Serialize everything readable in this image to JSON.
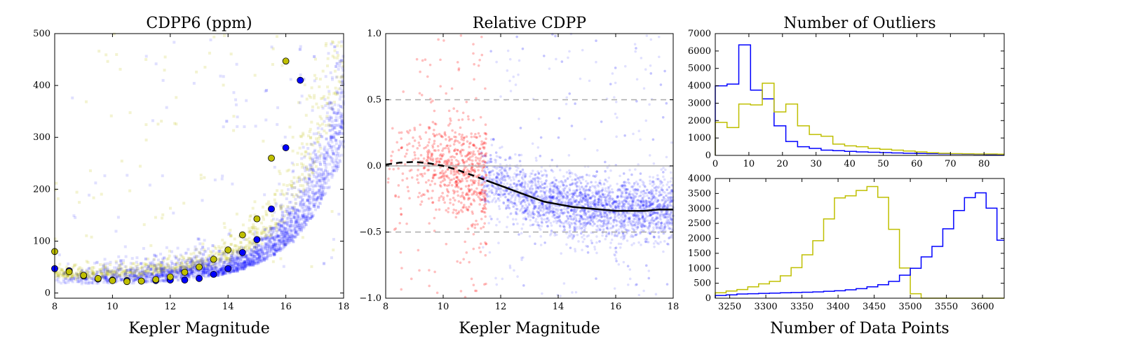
{
  "chart_data": [
    {
      "type": "scatter",
      "title": "CDPP6 (ppm)",
      "xlabel": "Kepler Magnitude",
      "ylabel": "",
      "xlim": [
        8,
        18
      ],
      "ylim": [
        -10,
        500
      ],
      "xticks": [
        "8",
        "10",
        "12",
        "14",
        "16",
        "18"
      ],
      "yticks": [
        "0",
        "100",
        "200",
        "300",
        "400",
        "500"
      ],
      "grid": false,
      "colors": {
        "blue": "#0000ff",
        "yellow": "#bfbf00"
      },
      "series": [
        {
          "points": [
            [
              8,
              47
            ],
            [
              8.5,
              43
            ],
            [
              9,
              33
            ],
            [
              9.5,
              27
            ],
            [
              10,
              25
            ],
            [
              10.5,
              24
            ],
            [
              11,
              23
            ],
            [
              11.5,
              24
            ],
            [
              12,
              25
            ],
            [
              12.5,
              25
            ],
            [
              13,
              28
            ],
            [
              13.5,
              36
            ],
            [
              14,
              47
            ],
            [
              14.5,
              78
            ],
            [
              15,
              103
            ],
            [
              15.5,
              162
            ],
            [
              16,
              280
            ],
            [
              16.5,
              410
            ]
          ]
        },
        {
          "points": [
            [
              8,
              80
            ],
            [
              8.5,
              41
            ],
            [
              9,
              34
            ],
            [
              9.5,
              28
            ],
            [
              10,
              24
            ],
            [
              10.5,
              22
            ],
            [
              11,
              23
            ],
            [
              11.5,
              26
            ],
            [
              12,
              31
            ],
            [
              12.5,
              40
            ],
            [
              13,
              50
            ],
            [
              13.5,
              65
            ],
            [
              14,
              83
            ],
            [
              14.5,
              112
            ],
            [
              15,
              143
            ],
            [
              15.5,
              260
            ],
            [
              16,
              447
            ]
          ]
        }
      ]
    },
    {
      "type": "scatter",
      "title": "Relative CDPP",
      "xlabel": "Kepler Magnitude",
      "ylabel": "",
      "xlim": [
        8,
        18
      ],
      "ylim": [
        -1.0,
        1.0
      ],
      "xticks": [
        "8",
        "10",
        "12",
        "14",
        "16",
        "18"
      ],
      "yticks": [
        "−1.0",
        "−0.5",
        "0.0",
        "0.5",
        "1.0"
      ],
      "grid": false,
      "reference_lines": {
        "solid": [
          0.0
        ],
        "dashed": [
          0.5,
          -0.5
        ]
      },
      "colors": {
        "red": "#ff0000",
        "blue": "#0000ff",
        "trend": "#000000"
      },
      "series": [
        {
          "x": [
            8,
            8.5,
            9,
            9.5,
            10,
            10.5,
            11,
            11.5,
            12,
            12.5,
            13,
            13.5,
            14,
            14.5,
            15,
            15.5,
            16,
            16.5,
            17,
            17.5,
            18
          ],
          "y": [
            0.01,
            0.025,
            0.03,
            0.02,
            0.0,
            -0.03,
            -0.07,
            -0.11,
            -0.15,
            -0.19,
            -0.23,
            -0.27,
            -0.29,
            -0.31,
            -0.32,
            -0.33,
            -0.34,
            -0.34,
            -0.34,
            -0.33,
            -0.33
          ]
        }
      ]
    },
    {
      "type": "histogram",
      "title": "Number of Outliers",
      "xlabel": "",
      "ylabel": "",
      "xlim": [
        0,
        86
      ],
      "ylim": [
        0,
        7000
      ],
      "xticks": [
        "0",
        "10",
        "20",
        "30",
        "40",
        "50",
        "60",
        "70",
        "80"
      ],
      "yticks": [
        "0",
        "1000",
        "2000",
        "3000",
        "4000",
        "5000",
        "6000",
        "7000"
      ],
      "grid": false,
      "bin_edges": [
        0,
        3.5,
        7,
        10.5,
        14,
        17.5,
        21,
        24.5,
        28,
        31.5,
        35,
        38.5,
        42,
        45.5,
        49,
        52.5,
        56,
        59.5,
        63,
        66.5,
        70,
        73.5,
        77,
        80.5,
        84,
        86
      ],
      "series": [
        {
          "color": "#0000ff",
          "values": [
            4000,
            4100,
            6350,
            3750,
            3250,
            1700,
            800,
            500,
            400,
            300,
            270,
            230,
            200,
            180,
            160,
            140,
            120,
            110,
            100,
            90,
            80,
            70,
            60,
            50,
            40
          ]
        },
        {
          "color": "#bfbf00",
          "values": [
            1900,
            1600,
            2950,
            2900,
            4150,
            2500,
            2950,
            1700,
            1200,
            1100,
            650,
            550,
            500,
            400,
            350,
            300,
            250,
            200,
            150,
            120,
            100,
            90,
            80,
            80,
            70
          ]
        }
      ]
    },
    {
      "type": "histogram",
      "title": "",
      "xlabel": "Number of Data Points",
      "ylabel": "",
      "xlim": [
        3230,
        3630
      ],
      "ylim": [
        0,
        4000
      ],
      "xticks": [
        "3250",
        "3300",
        "3350",
        "3400",
        "3450",
        "3500",
        "3550",
        "3600"
      ],
      "yticks": [
        "0",
        "500",
        "1000",
        "1500",
        "2000",
        "2500",
        "3000",
        "3500",
        "4000"
      ],
      "grid": false,
      "bin_edges": [
        3230,
        3245,
        3260,
        3275,
        3290,
        3305,
        3320,
        3335,
        3350,
        3365,
        3380,
        3395,
        3410,
        3425,
        3440,
        3455,
        3470,
        3485,
        3500,
        3515,
        3530,
        3545,
        3560,
        3575,
        3590,
        3605,
        3620,
        3630
      ],
      "series": [
        {
          "color": "#bfbf00",
          "values": [
            180,
            240,
            290,
            380,
            480,
            560,
            750,
            1020,
            1450,
            1920,
            2650,
            3350,
            3420,
            3600,
            3730,
            3370,
            2300,
            1010,
            150,
            0,
            0,
            0,
            0,
            0,
            0,
            0,
            0
          ]
        },
        {
          "color": "#0000ff",
          "values": [
            90,
            110,
            140,
            150,
            160,
            170,
            180,
            190,
            200,
            210,
            230,
            250,
            280,
            320,
            380,
            450,
            560,
            770,
            1000,
            1380,
            1730,
            2320,
            2930,
            3360,
            3520,
            3010,
            1940
          ]
        }
      ]
    }
  ]
}
